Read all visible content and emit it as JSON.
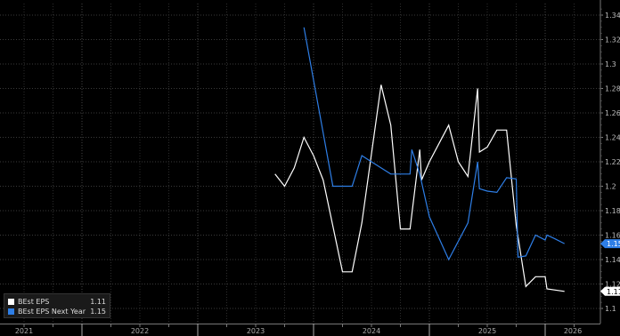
{
  "chart_data": {
    "type": "line",
    "x_axis": [
      "2021",
      "2022",
      "2023",
      "2024",
      "2025",
      "2026"
    ],
    "ylim": [
      1.09,
      1.345
    ],
    "y_ticks": [
      "1.1",
      "1.12",
      "1.14",
      "1.16",
      "1.18",
      "1.2",
      "1.22",
      "1.24",
      "1.26",
      "1.28",
      "1.3",
      "1.32",
      "1.34"
    ],
    "grid": true,
    "legend_position": "bottom-left",
    "series": [
      {
        "name": "BEst EPS",
        "color": "#ffffff",
        "last_label": "1.11",
        "points": [
          [
            "2023-09",
            1.21
          ],
          [
            "2023-10",
            1.2
          ],
          [
            "2023-11",
            1.215
          ],
          [
            "2023-12",
            1.24
          ],
          [
            "2024-01",
            1.225
          ],
          [
            "2024-02",
            1.205
          ],
          [
            "2024-04",
            1.13
          ],
          [
            "2024-05",
            1.13
          ],
          [
            "2024-06",
            1.17
          ],
          [
            "2024-08",
            1.283
          ],
          [
            "2024-09",
            1.25
          ],
          [
            "2024-10",
            1.165
          ],
          [
            "2024-11",
            1.165
          ],
          [
            "2024-12",
            1.23
          ],
          [
            "2024-12",
            1.205
          ],
          [
            "2025-01",
            1.22
          ],
          [
            "2025-03",
            1.25
          ],
          [
            "2025-04",
            1.22
          ],
          [
            "2025-05",
            1.208
          ],
          [
            "2025-06",
            1.28
          ],
          [
            "2025-06",
            1.228
          ],
          [
            "2025-07",
            1.232
          ],
          [
            "2025-08",
            1.246
          ],
          [
            "2025-09",
            1.246
          ],
          [
            "2025-10",
            1.168
          ],
          [
            "2025-11",
            1.118
          ],
          [
            "2025-12",
            1.126
          ],
          [
            "2026-01",
            1.126
          ],
          [
            "2026-01",
            1.116
          ],
          [
            "2026-03",
            1.114
          ]
        ]
      },
      {
        "name": "BEst EPS Next Year",
        "color": "#2e7ee6",
        "last_label": "1.15",
        "points": [
          [
            "2023-12",
            1.33
          ],
          [
            "2024-03",
            1.2
          ],
          [
            "2024-04",
            1.2
          ],
          [
            "2024-05",
            1.2
          ],
          [
            "2024-06",
            1.225
          ],
          [
            "2024-07",
            1.22
          ],
          [
            "2024-08",
            1.215
          ],
          [
            "2024-09",
            1.21
          ],
          [
            "2024-10",
            1.21
          ],
          [
            "2024-11",
            1.21
          ],
          [
            "2024-11",
            1.23
          ],
          [
            "2024-12",
            1.21
          ],
          [
            "2025-01",
            1.175
          ],
          [
            "2025-03",
            1.14
          ],
          [
            "2025-05",
            1.17
          ],
          [
            "2025-06",
            1.22
          ],
          [
            "2025-06",
            1.198
          ],
          [
            "2025-07",
            1.196
          ],
          [
            "2025-08",
            1.195
          ],
          [
            "2025-09",
            1.207
          ],
          [
            "2025-10",
            1.206
          ],
          [
            "2025-10",
            1.142
          ],
          [
            "2025-11",
            1.143
          ],
          [
            "2025-12",
            1.16
          ],
          [
            "2026-01",
            1.156
          ],
          [
            "2026-01",
            1.16
          ],
          [
            "2026-02",
            1.157
          ],
          [
            "2026-03",
            1.153
          ]
        ]
      }
    ]
  },
  "legend": {
    "items": [
      {
        "label": "BEst EPS",
        "value": "1.11",
        "color": "#ffffff"
      },
      {
        "label": "BEst EPS Next Year",
        "value": "1.15",
        "color": "#2e7ee6"
      }
    ]
  }
}
